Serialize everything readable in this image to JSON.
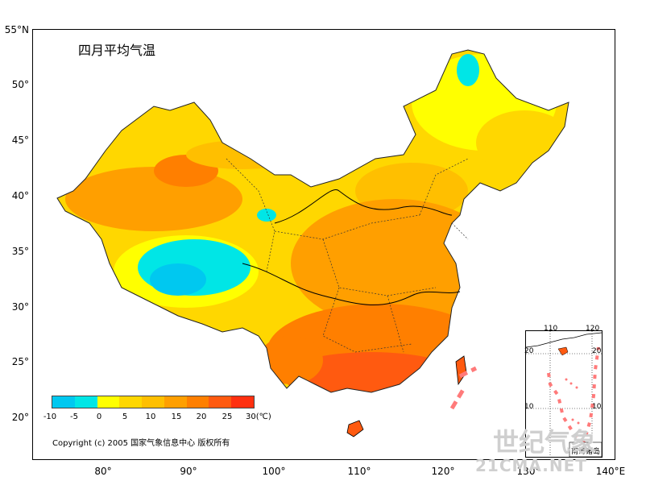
{
  "title": "四月平均气温",
  "copyright": "Copyright (c) 2005 国家气象信息中心 版权所有",
  "axes": {
    "lat_labels": [
      "55°N",
      "50°",
      "45°",
      "40°",
      "35°",
      "30°",
      "25°",
      "20°"
    ],
    "lon_labels": [
      "80°",
      "90°",
      "100°",
      "110°",
      "120°",
      "130°",
      "140°E"
    ]
  },
  "legend": {
    "ticks": [
      "-10",
      "-5",
      "0",
      "5",
      "10",
      "15",
      "20",
      "25",
      "30(℃)"
    ],
    "colors": [
      "#00c8f0",
      "#00e6e6",
      "#ffff00",
      "#ffd700",
      "#ffbf00",
      "#ff9f00",
      "#ff7f00",
      "#ff5a10",
      "#ff3010"
    ]
  },
  "inset": {
    "title": "南海诸岛",
    "ticks_top": [
      "110",
      "120"
    ],
    "ticks_left": [
      "20",
      "10"
    ],
    "ticks_right": [
      "20",
      "10"
    ]
  },
  "watermark": {
    "line1": "世纪气象",
    "line2": "21CMA.NET"
  }
}
